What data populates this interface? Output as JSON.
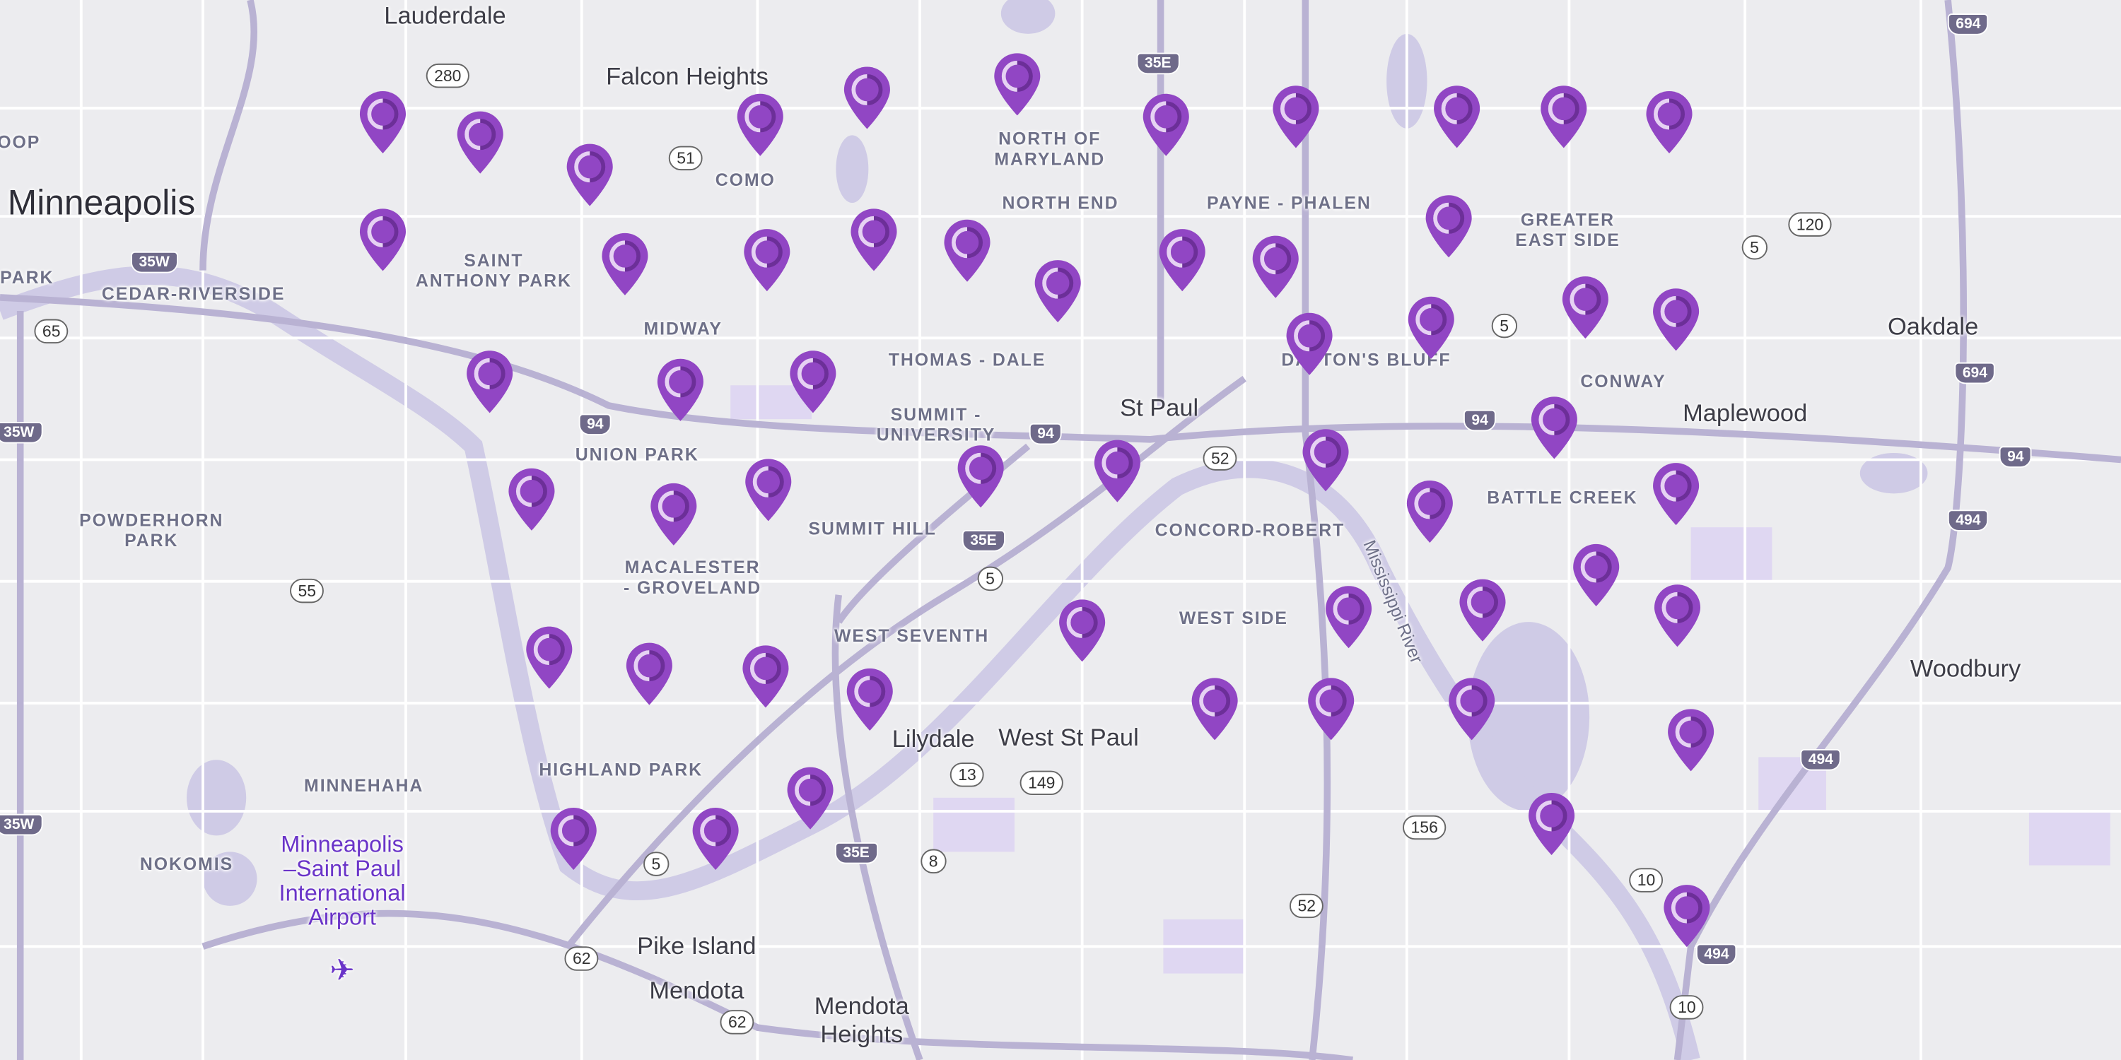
{
  "map": {
    "city_labels": [
      "Lauderdale",
      "Falcon Heights",
      "St Paul",
      "Oakdale",
      "Maplewood",
      "Woodbury",
      "Lilydale",
      "West St Paul",
      "Pike Island",
      "Mendota",
      "Mendota\nHeights"
    ],
    "major_city_label": "Minneapolis",
    "neighborhood_labels": [
      "COMO",
      "NORTH OF\nMARYLAND",
      "NORTH END",
      "PAYNE - PHALEN",
      "GREATER\nEAST SIDE",
      "SAINT\nANTHONY PARK",
      "CEDAR-RIVERSIDE",
      "PARK",
      "MIDWAY",
      "THOMAS - DALE",
      "DAYTON'S BLUFF",
      "CONWAY",
      "SUMMIT -\nUNIVERSITY",
      "UNION PARK",
      "POWDERHORN\nPARK",
      "SUMMIT HILL",
      "CONCORD-ROBERT",
      "BATTLE CREEK",
      "MACALESTER\n- GROVELAND",
      "WEST SEVENTH",
      "WEST SIDE",
      "HIGHLAND PARK",
      "MINNEHAHA",
      "NOKOMIS",
      "OOP"
    ],
    "river_label": "Mississippi River",
    "airport": {
      "label": "Minneapolis\n–Saint Paul\nInternational\nAirport",
      "icon": "airplane-icon"
    },
    "route_shields": [
      "280",
      "51",
      "35E",
      "35W",
      "65",
      "35W",
      "94",
      "94",
      "52",
      "94",
      "35E",
      "5",
      "55",
      "5",
      "5",
      "120",
      "694",
      "694",
      "94",
      "494",
      "494",
      "13",
      "149",
      "8",
      "35E",
      "5",
      "156",
      "52",
      "10",
      "494",
      "10",
      "62",
      "62",
      "35W"
    ],
    "pins": {
      "count": 54,
      "icon": "map-pin-icon",
      "color": "#9146c4",
      "ring_light": "#e6d2f3",
      "ring_dark": "#6c2f98"
    },
    "colors": {
      "land": "#ececef",
      "water": "#cfcbe6",
      "park": "#dcd2f2",
      "road": "#ffffff",
      "highway": "#b9b2d3"
    }
  }
}
